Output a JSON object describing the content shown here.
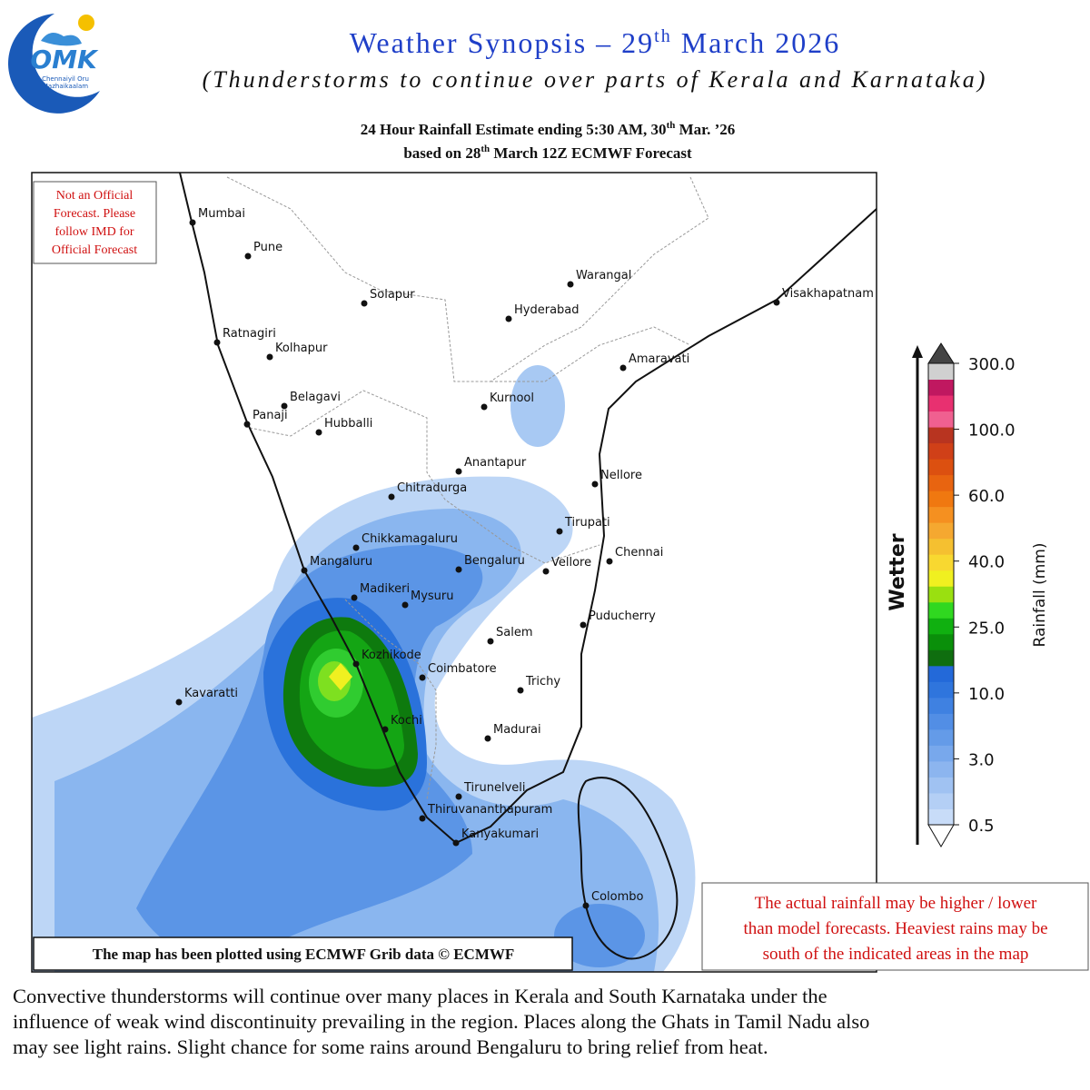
{
  "header": {
    "logo_text": [
      "Chennaiyil Oru",
      "Mazhaikaalam"
    ],
    "logo_word": "OMK",
    "title": {
      "pre": "Weather Synopsis – 29",
      "sup": "th",
      "post": " March 2026"
    },
    "subtitle": "(Thunderstorms to continue over parts of  Kerala and Karnataka)",
    "map_title_1": {
      "pre": "24 Hour Rainfall Estimate ending 5:30 AM,  30",
      "sup": "th",
      "post": " Mar. ’26"
    },
    "map_title_2": {
      "pre": "based on 28",
      "sup": "th",
      "post": " March 12Z ECMWF Forecast"
    }
  },
  "map": {
    "cities": [
      "Mumbai",
      "Pune",
      "Solapur",
      "Warangal",
      "Hyderabad",
      "Visakhapatnam",
      "Ratnagiri",
      "Kolhapur",
      "Amaravati",
      "Belagavi",
      "Kurnool",
      "Panaji",
      "Hubballi",
      "Anantapur",
      "Nellore",
      "Chitradurga",
      "Tirupati",
      "Chikkamagaluru",
      "Chennai",
      "Mangaluru",
      "Bengaluru",
      "Vellore",
      "Madikeri",
      "Mysuru",
      "Puducherry",
      "Salem",
      "Kozhikode",
      "Coimbatore",
      "Trichy",
      "Kavaratti",
      "Madurai",
      "Kochi",
      "Tirunelveli",
      "Thiruvananthapuram",
      "Kanyakumari",
      "Colombo"
    ],
    "disclaimer": [
      "Not an Official",
      "Forecast. Please",
      "follow IMD for",
      "Official Forecast"
    ],
    "credit": "The map has been plotted using ECMWF Grib data © ECMWF"
  },
  "legend": {
    "arrow_label": "Wetter",
    "axis_label": "Rainfall (mm)",
    "ticks": [
      "0.5",
      "3.0",
      "10.0",
      "25.0",
      "40.0",
      "60.0",
      "100.0",
      "300.0"
    ],
    "colors": [
      "#c8dcf8",
      "#b4cff5",
      "#a0c2f2",
      "#8cb5ef",
      "#78a8ec",
      "#649be8",
      "#528ee5",
      "#3f81e1",
      "#2f75dd",
      "#2369d9",
      "#0f6e0f",
      "#0a8f0a",
      "#10b010",
      "#30d820",
      "#9ae010",
      "#f0f020",
      "#f8d830",
      "#f5c030",
      "#f5a830",
      "#f59020",
      "#f07810",
      "#e86410",
      "#dc5010",
      "#d04018",
      "#b83420",
      "#f06090",
      "#e83070",
      "#c01860",
      "#d0d0d0"
    ]
  },
  "notes": {
    "caveat": [
      "The actual rainfall may be higher / lower",
      "than model forecasts. Heaviest rains may be",
      "south of the indicated areas in the map"
    ]
  },
  "body": {
    "paragraph": [
      "Convective thunderstorms will continue over many places in Kerala and South Karnataka under the",
      "influence of  weak wind discontinuity prevailing in the region. Places along the Ghats in Tamil Nadu also",
      "may see light rains. Slight chance for some rains around Bengaluru to bring relief  from heat."
    ]
  }
}
